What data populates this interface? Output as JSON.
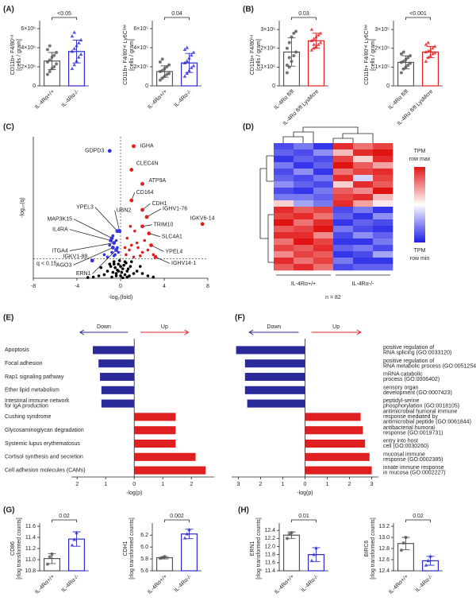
{
  "chart_data": [
    {
      "type": "bar",
      "panel": "(A)",
      "ylabel": "CD11b+ F4/80ⁱⁿᵗ",
      "yunit": "[cells / gram]",
      "categories": [
        "IL-4Rα+/+",
        "IL-4Rα-/-"
      ],
      "colors": [
        "#555555",
        "#2a2ad0"
      ],
      "values": [
        2600000,
        3600000
      ],
      "errors": [
        900000,
        1200000
      ],
      "points": [
        [
          1200000,
          1500000,
          1800000,
          2000000,
          2300000,
          2500000,
          2700000,
          3000000,
          3200000,
          3500000,
          3800000,
          4200000
        ],
        [
          1800000,
          2200000,
          2600000,
          3000000,
          3300000,
          3600000,
          3900000,
          4200000,
          4500000,
          4800000,
          5200000,
          5600000
        ]
      ],
      "ylim": [
        0,
        6500000
      ],
      "yticks": [
        0,
        {
          "value": 2000000,
          "label": "2×10⁶"
        },
        {
          "value": 4000000,
          "label": "4×10⁶"
        },
        {
          "value": 6000000,
          "label": "6×10⁶"
        }
      ],
      "pvalue": "<0.05"
    },
    {
      "type": "bar",
      "ylabel": "CD11b+ F4/80ⁱⁿᵗ Ly6Cˡᵒʷ",
      "yunit": "[cells / gram]",
      "categories": [
        "IL-4Rα+/+",
        "IL-4Rα-/-"
      ],
      "colors": [
        "#555555",
        "#2a2ad0"
      ],
      "values": [
        150000,
        240000
      ],
      "errors": [
        60000,
        100000
      ],
      "points": [
        [
          60000,
          80000,
          100000,
          120000,
          130000,
          150000,
          160000,
          180000,
          200000,
          220000,
          250000,
          280000
        ],
        [
          100000,
          130000,
          160000,
          190000,
          210000,
          240000,
          260000,
          290000,
          320000,
          350000,
          380000,
          400000
        ]
      ],
      "ylim": [
        0,
        650000
      ],
      "yticks": [
        0,
        {
          "value": 200000,
          "label": "2×10⁵"
        },
        {
          "value": 400000,
          "label": "4×10⁵"
        },
        {
          "value": 600000,
          "label": "6×10⁵"
        }
      ],
      "pvalue": "0.04"
    },
    {
      "type": "bar",
      "panel": "(B)",
      "ylabel": "CD11b+ F4/80ⁱⁿᵗ",
      "yunit": "[cells / gram]",
      "categories": [
        "IL-4Rα fl/fl",
        "IL-4Rα fl/fl LysMcre"
      ],
      "colors": [
        "#555555",
        "#e02020"
      ],
      "values": [
        1800000,
        2400000
      ],
      "errors": [
        750000,
        400000
      ],
      "points": [
        [
          700000,
          1000000,
          1300000,
          1600000,
          1800000,
          2000000,
          2300000,
          2600000,
          2800000,
          2900000,
          1100000,
          1500000
        ],
        [
          1900000,
          2000000,
          2100000,
          2200000,
          2300000,
          2400000,
          2500000,
          2600000,
          2700000,
          2800000,
          3000000,
          2200000
        ]
      ],
      "ylim": [
        0,
        3300000
      ],
      "yticks": [
        0,
        {
          "value": 1000000,
          "label": "1×10⁶"
        },
        {
          "value": 2000000,
          "label": "2×10⁶"
        },
        {
          "value": 3000000,
          "label": "3×10⁶"
        }
      ],
      "pvalue": "0.03"
    },
    {
      "type": "bar",
      "ylabel": "CD11b+ F4/80ⁱⁿᵗ Ly6Cˡᵒʷ",
      "yunit": "[cells / gram]",
      "categories": [
        "IL-4Rα fl/fl",
        "IL-4Rα fl/fl LysMcre"
      ],
      "colors": [
        "#555555",
        "#e02020"
      ],
      "values": [
        125000,
        180000
      ],
      "errors": [
        35000,
        30000
      ],
      "points": [
        [
          70000,
          90000,
          100000,
          110000,
          120000,
          125000,
          130000,
          140000,
          150000,
          160000,
          170000,
          180000
        ],
        [
          130000,
          150000,
          160000,
          170000,
          175000,
          180000,
          185000,
          190000,
          200000,
          210000,
          220000,
          230000
        ]
      ],
      "ylim": [
        0,
        330000
      ],
      "yticks": [
        0,
        {
          "value": 100000,
          "label": "1×10⁵"
        },
        {
          "value": 200000,
          "label": "2×10⁵"
        },
        {
          "value": 300000,
          "label": "3×10⁵"
        }
      ],
      "pvalue": "<0.001"
    },
    {
      "type": "scatter",
      "panel": "(C)",
      "xlabel": "-log₂(fold)",
      "ylabel": "-log₁₀(q)",
      "xlim": [
        -8,
        8
      ],
      "xticks": [
        -8,
        -4,
        0,
        4,
        8
      ],
      "ylim": [
        0,
        6
      ],
      "threshold": 0.82,
      "threshold_label": "q < 0.15",
      "series": [
        {
          "color": "#000000",
          "x": [
            -1.2,
            -0.9,
            -0.6,
            -0.4,
            -0.2,
            0,
            0.2,
            0.4,
            0.6,
            0.9,
            1.2,
            -1.5,
            1.5,
            -0.8,
            0.8,
            -0.3,
            0.3,
            -0.5,
            0.5,
            0.1,
            -0.1,
            -2.0,
            2.0,
            -1.0,
            1.0,
            -0.7,
            0.7,
            -2.5,
            2.5,
            0.0,
            -3.0,
            3.0,
            -0.4,
            0.4,
            1.8,
            -1.8,
            0.6,
            -0.6,
            0.2,
            -0.2
          ],
          "y": [
            0.3,
            0.5,
            0.7,
            0.2,
            0.6,
            0.1,
            0.4,
            0.7,
            0.3,
            0.5,
            0.2,
            0.15,
            0.3,
            0.05,
            0.1,
            0.35,
            0.55,
            0.45,
            0.65,
            0.25,
            0.75,
            0.1,
            0.2,
            0.6,
            0.7,
            0.25,
            0.4,
            0.05,
            0.1,
            0.5,
            0.03,
            0.05,
            0.1,
            0.15,
            0.5,
            0.45,
            0.05,
            0.6,
            0.02,
            0.3
          ]
        },
        {
          "color": "#3333dd",
          "x": [
            -0.5,
            -0.3,
            -0.8,
            -1.2,
            -0.4,
            -0.6,
            -1.0,
            -0.2,
            -1.5,
            -0.7
          ],
          "y": [
            1.0,
            1.3,
            1.1,
            0.9,
            1.6,
            0.95,
            1.4,
            1.1,
            1.0,
            1.8
          ]
        },
        {
          "color": "#e02020",
          "x": [
            0.5,
            0.8,
            1.2,
            1.5,
            2.0,
            0.6,
            1.0,
            1.8,
            2.5,
            0.4,
            1.3,
            2.2,
            3.0,
            0.9,
            1.6
          ],
          "y": [
            1.0,
            1.2,
            0.9,
            1.5,
            1.1,
            1.7,
            1.4,
            0.95,
            1.2,
            1.3,
            2.0,
            1.6,
            1.0,
            2.2,
            1.3
          ]
        }
      ],
      "genes": [
        {
          "label": "GDPD3",
          "x": -1.0,
          "y": 5.4,
          "color": "#3333dd"
        },
        {
          "label": "IGHA",
          "x": 1.2,
          "y": 5.6,
          "color": "#e02020"
        },
        {
          "label": "CLEC4N",
          "x": 1.0,
          "y": 4.6,
          "color": "#e02020"
        },
        {
          "label": "ATP9A",
          "x": 2.0,
          "y": 4.0,
          "color": "#e02020"
        },
        {
          "label": "CD164",
          "x": 1.0,
          "y": 3.3,
          "color": "#e02020"
        },
        {
          "label": "CDH1",
          "x": 2.0,
          "y": 2.9,
          "color": "#e02020"
        },
        {
          "label": "IGHV1-76",
          "x": 2.4,
          "y": 2.6,
          "color": "#e02020"
        },
        {
          "label": "IGKV6-14",
          "x": 7.5,
          "y": 2.3,
          "color": "#e02020"
        },
        {
          "label": "TRIM10",
          "x": 2.0,
          "y": 2.2,
          "color": "#e02020"
        },
        {
          "label": "SLC4A1",
          "x": 2.6,
          "y": 1.9,
          "color": "#e02020"
        },
        {
          "label": "YPEL4",
          "x": 2.8,
          "y": 1.4,
          "color": "#e02020"
        },
        {
          "label": "IGHV14-1",
          "x": 3.2,
          "y": 0.9,
          "color": "#e02020"
        },
        {
          "label": "YPEL3",
          "x": -0.3,
          "y": 2.0,
          "color": "#3333dd"
        },
        {
          "label": "UBN2",
          "x": -0.1,
          "y": 2.0,
          "color": "#3333dd"
        },
        {
          "label": "MAP3K15",
          "x": -0.8,
          "y": 1.7,
          "color": "#3333dd"
        },
        {
          "label": "IL4RA",
          "x": -0.9,
          "y": 1.6,
          "color": "#3333dd"
        },
        {
          "label": "ITGA4",
          "x": -0.6,
          "y": 1.5,
          "color": "#3333dd"
        },
        {
          "label": "AGO3",
          "x": -0.7,
          "y": 1.3,
          "color": "#3333dd"
        },
        {
          "label": "ERN1",
          "x": -0.4,
          "y": 1.2,
          "color": "#3333dd"
        },
        {
          "label": "IGKV1-88",
          "x": -2.6,
          "y": 0.75,
          "color": "#3333dd"
        }
      ]
    },
    {
      "type": "heatmap",
      "panel": "(D)",
      "groups": [
        "IL-4Rα+/+",
        "IL-4Rα-/-"
      ],
      "n_label": "n = 82",
      "max_label": [
        "TPM",
        "row max"
      ],
      "min_label": [
        "TPM",
        "row min"
      ],
      "values": [
        [
          -0.8,
          -0.6,
          -0.9,
          0.9,
          0.6,
          0.8
        ],
        [
          -0.7,
          -0.8,
          -0.5,
          0.3,
          0.9,
          1.0
        ],
        [
          -0.9,
          -0.7,
          -0.8,
          0.8,
          0.2,
          0.9
        ],
        [
          -0.6,
          -0.9,
          -0.7,
          1.0,
          0.7,
          0.4
        ],
        [
          -0.8,
          -0.5,
          -0.9,
          0.6,
          0.8,
          0.9
        ],
        [
          -0.7,
          -0.8,
          -0.6,
          0.9,
          -0.2,
          0.8
        ],
        [
          -0.5,
          -0.7,
          -0.8,
          0.2,
          0.9,
          0.7
        ],
        [
          -0.8,
          -0.9,
          -0.6,
          0.7,
          0.5,
          1.0
        ],
        [
          -0.6,
          -0.6,
          -0.7,
          0.8,
          0.9,
          0.3
        ],
        [
          0.2,
          -0.4,
          -0.6,
          0.9,
          0.4,
          0.1
        ],
        [
          0.9,
          0.7,
          0.8,
          -0.8,
          -0.6,
          -0.9
        ],
        [
          0.8,
          0.9,
          0.6,
          -0.7,
          -0.9,
          -0.5
        ],
        [
          1.0,
          0.6,
          0.9,
          -0.9,
          -0.7,
          -0.8
        ],
        [
          0.7,
          0.8,
          1.0,
          -0.6,
          -0.8,
          -0.9
        ],
        [
          0.9,
          0.9,
          0.5,
          -0.8,
          -0.5,
          -0.7
        ],
        [
          0.6,
          1.0,
          0.8,
          -0.9,
          -0.9,
          -0.6
        ],
        [
          0.8,
          0.7,
          0.9,
          -0.7,
          -0.6,
          -0.8
        ],
        [
          0.5,
          0.8,
          0.7,
          -0.9,
          -0.8,
          -0.4
        ],
        [
          0.9,
          0.6,
          0.8,
          -0.6,
          -0.9,
          -0.9
        ],
        [
          0.7,
          0.9,
          0.6,
          -0.8,
          -0.7,
          -0.7
        ]
      ]
    },
    {
      "type": "hbar",
      "panel": "(E)",
      "xlabel": "-log(p)",
      "xlim": [
        -2.2,
        2.8
      ],
      "xticks": [
        {
          "value": -2,
          "label": "2"
        },
        {
          "value": -1,
          "label": "1"
        },
        0,
        1,
        2
      ],
      "series": [
        {
          "name": "Down",
          "color": "#2a2a9a",
          "categories": [
            "Apoptosis",
            "Focal adhesion",
            "Rap1 signaling pathway",
            "Ether lipid metabolism",
            [
              "Intestinal immune network",
              "for IgA production"
            ]
          ],
          "values": [
            -1.45,
            -1.25,
            -1.2,
            -1.15,
            -1.15
          ]
        },
        {
          "name": "Up",
          "color": "#e02020",
          "categories": [
            "Cushing syndrome",
            "Glycosaminoglycan degradation",
            "Systemic lupus erythematosus",
            "Cortisol synthesis and secretion",
            "Cell adhesion molecules (CAMs)"
          ],
          "values": [
            1.45,
            1.45,
            1.45,
            2.15,
            2.5
          ]
        }
      ]
    },
    {
      "type": "hbar",
      "panel": "(F)",
      "xlabel": "-log(p)",
      "xlim": [
        -3.3,
        3.3
      ],
      "xticks": [
        {
          "value": -3,
          "label": "3"
        },
        {
          "value": -2,
          "label": "2"
        },
        {
          "value": -1,
          "label": "1"
        },
        0,
        1,
        2,
        3
      ],
      "series": [
        {
          "name": "Down",
          "color": "#2a2a9a",
          "categories": [
            [
              "positive regulation of",
              "RNA splicing (GO:0033120)"
            ],
            [
              "positive regulation of",
              "RNA metabolic process (GO:0051254)"
            ],
            [
              "mRNA catabolic",
              "process (GO:0006402)"
            ],
            [
              "sensory organ",
              "development (GO:0007423)"
            ],
            [
              "peptidyl-serine",
              "phosphorylation (GO:0018105)"
            ]
          ],
          "values": [
            -3.1,
            -2.7,
            -2.7,
            -2.7,
            -2.6
          ]
        },
        {
          "name": "Up",
          "color": "#e02020",
          "categories": [
            [
              "antimicrobial humoral immune",
              "response mediated by",
              "antimicrobial peptide (GO:0061844)"
            ],
            [
              "antibacterial humoral",
              "response (GO:0019731)"
            ],
            [
              "entry into host",
              "cell (GO:0030260)"
            ],
            [
              "mucosal immune",
              "response (GO:0002385)"
            ],
            [
              "innate immune response",
              "in mucosa (GO:0002227)"
            ]
          ],
          "values": [
            2.5,
            2.6,
            2.7,
            2.9,
            3.0
          ]
        }
      ]
    },
    {
      "type": "bar",
      "panel": "(G)",
      "ylabel": "CD86",
      "yunit": "[rlog transformed counts]",
      "categories": [
        "IL-4Rα+/+",
        "IL-4Rα-/-"
      ],
      "colors": [
        "#555555",
        "#2a2ad0"
      ],
      "values": [
        11.02,
        11.37
      ],
      "errors": [
        0.09,
        0.13
      ],
      "points": [
        [
          10.92,
          11.05,
          11.1
        ],
        [
          11.26,
          11.36,
          11.48
        ]
      ],
      "ylim": [
        10.8,
        11.6
      ],
      "yticks": [
        10.8,
        {
          "value": 11,
          "label": "11.0"
        },
        11.2,
        11.4,
        11.6
      ],
      "pvalue": "0.02"
    },
    {
      "type": "bar",
      "ylabel": "CDH1",
      "yunit": "[rlog transformed counts]",
      "categories": [
        "IL-4Rα+/+",
        "IL-4Rα-/-"
      ],
      "colors": [
        "#555555",
        "#2a2ad0"
      ],
      "values": [
        5.82,
        6.22
      ],
      "errors": [
        0.02,
        0.08
      ],
      "points": [
        [
          5.81,
          5.82,
          5.84
        ],
        [
          6.15,
          6.22,
          6.29
        ]
      ],
      "ylim": [
        5.6,
        6.35
      ],
      "yticks": [
        5.6,
        5.8,
        {
          "value": 6,
          "label": "6.0"
        },
        6.2
      ],
      "pvalue": "0.002"
    },
    {
      "type": "bar",
      "panel": "(H)",
      "ylabel": "ERN1",
      "yunit": "[rlog transformed counts]",
      "categories": [
        "IL-4Rα+/+",
        "IL-4Rα-/-"
      ],
      "colors": [
        "#555555",
        "#2a2ad0"
      ],
      "values": [
        12.28,
        11.8
      ],
      "errors": [
        0.08,
        0.17
      ],
      "points": [
        [
          12.2,
          12.3,
          12.34
        ],
        [
          11.65,
          11.8,
          11.96
        ]
      ],
      "ylim": [
        11.4,
        12.5
      ],
      "yticks": [
        11.4,
        11.6,
        11.8,
        {
          "value": 12,
          "label": "12.0"
        },
        12.2,
        12.4
      ],
      "pvalue": "0.01"
    },
    {
      "type": "bar",
      "ylabel": "BIRC6",
      "yunit": "[rlog transformed counts]",
      "categories": [
        "IL-4Rα+/+",
        "IL-4Rα-/-"
      ],
      "colors": [
        "#555555",
        "#2a2ad0"
      ],
      "values": [
        12.89,
        12.58
      ],
      "errors": [
        0.11,
        0.08
      ],
      "points": [
        [
          12.77,
          12.9,
          13.0
        ],
        [
          12.5,
          12.58,
          12.66
        ]
      ],
      "ylim": [
        12.4,
        13.2
      ],
      "yticks": [
        12.4,
        12.6,
        12.8,
        {
          "value": 13,
          "label": "13.0"
        },
        13.2
      ],
      "pvalue": "0.02"
    }
  ]
}
